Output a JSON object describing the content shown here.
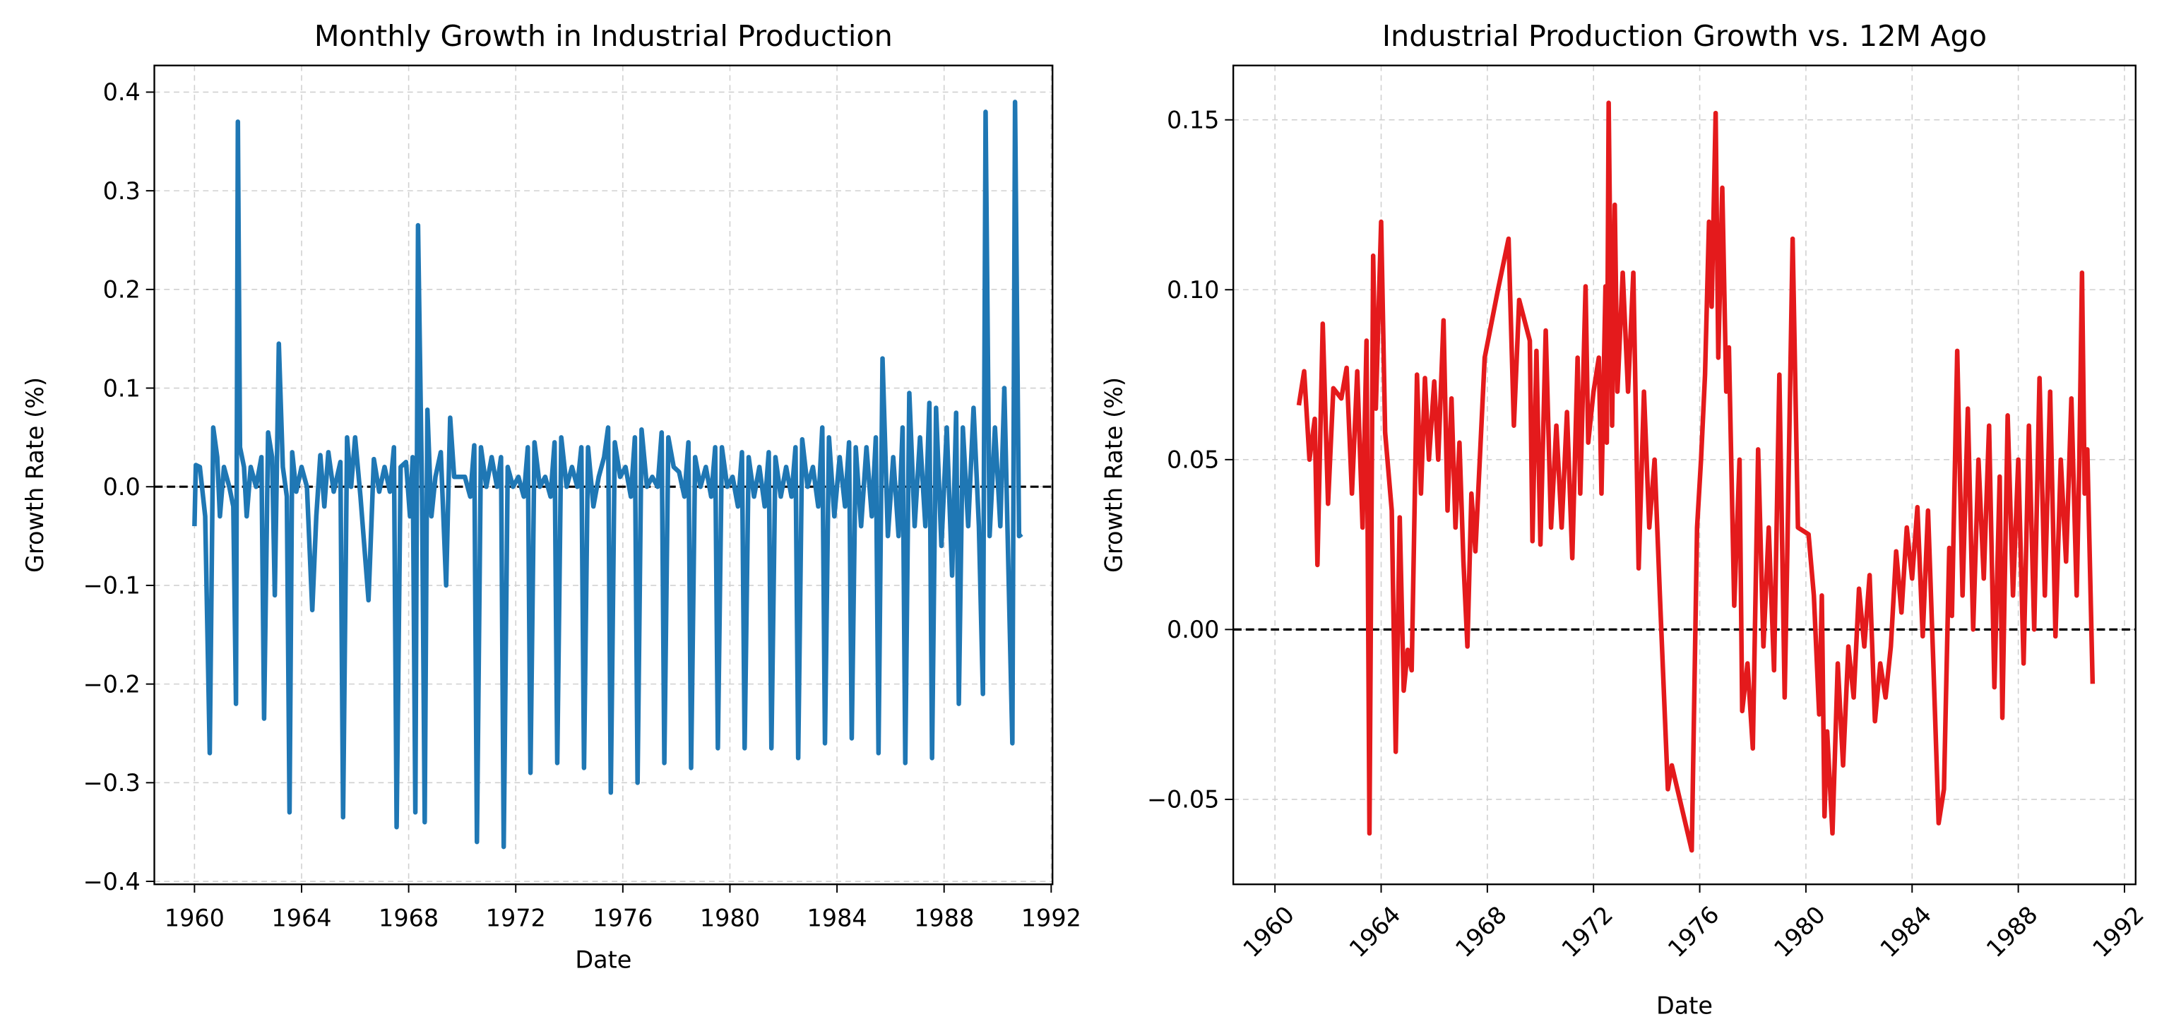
{
  "chart_data": [
    {
      "type": "line",
      "title": "Monthly Growth in Industrial Production",
      "xlabel": "Date",
      "ylabel": "Growth Rate (%)",
      "color": "#1f77b4",
      "grid": true,
      "hline": 0,
      "xlim": [
        1958.5,
        1992.05
      ],
      "xticks": [
        1960,
        1964,
        1968,
        1972,
        1976,
        1980,
        1984,
        1988,
        1992
      ],
      "ylim": [
        -0.403,
        0.427
      ],
      "yticks": [
        {
          "value": -0.4,
          "label": "−0.4"
        },
        {
          "value": -0.3,
          "label": "−0.3"
        },
        {
          "value": -0.2,
          "label": "−0.2"
        },
        {
          "value": -0.1,
          "label": "−0.1"
        },
        {
          "value": 0,
          "label": "0.0"
        },
        0.1,
        0.2,
        0.3,
        0.4
      ],
      "x": [
        1960.0,
        1960.05,
        1960.2,
        1960.4,
        1960.57,
        1960.7,
        1960.85,
        1960.95,
        1961.1,
        1961.3,
        1961.45,
        1961.55,
        1961.62,
        1961.7,
        1961.85,
        1961.95,
        1962.1,
        1962.3,
        1962.5,
        1962.6,
        1962.75,
        1962.9,
        1963.0,
        1963.15,
        1963.3,
        1963.45,
        1963.55,
        1963.65,
        1963.8,
        1964.0,
        1964.2,
        1964.4,
        1964.55,
        1964.7,
        1964.85,
        1965.0,
        1965.2,
        1965.45,
        1965.55,
        1965.7,
        1965.85,
        1966.0,
        1966.2,
        1966.5,
        1966.7,
        1966.9,
        1967.1,
        1967.3,
        1967.45,
        1967.55,
        1967.7,
        1967.9,
        1968.05,
        1968.15,
        1968.25,
        1968.35,
        1968.5,
        1968.6,
        1968.7,
        1968.85,
        1969.0,
        1969.2,
        1969.4,
        1969.55,
        1969.7,
        1969.9,
        1970.1,
        1970.3,
        1970.45,
        1970.55,
        1970.7,
        1970.9,
        1971.1,
        1971.3,
        1971.45,
        1971.55,
        1971.7,
        1971.9,
        1972.1,
        1972.3,
        1972.45,
        1972.55,
        1972.7,
        1972.9,
        1973.1,
        1973.3,
        1973.45,
        1973.55,
        1973.7,
        1973.9,
        1974.1,
        1974.3,
        1974.45,
        1974.55,
        1974.7,
        1974.9,
        1975.1,
        1975.3,
        1975.45,
        1975.55,
        1975.7,
        1975.9,
        1976.1,
        1976.3,
        1976.45,
        1976.55,
        1976.7,
        1976.9,
        1977.1,
        1977.3,
        1977.45,
        1977.55,
        1977.7,
        1977.9,
        1978.1,
        1978.3,
        1978.45,
        1978.55,
        1978.7,
        1978.9,
        1979.1,
        1979.3,
        1979.45,
        1979.55,
        1979.7,
        1979.9,
        1980.1,
        1980.3,
        1980.45,
        1980.55,
        1980.7,
        1980.9,
        1981.1,
        1981.3,
        1981.45,
        1981.55,
        1981.7,
        1981.9,
        1982.1,
        1982.3,
        1982.45,
        1982.55,
        1982.7,
        1982.9,
        1983.1,
        1983.3,
        1983.45,
        1983.55,
        1983.7,
        1983.9,
        1984.1,
        1984.3,
        1984.45,
        1984.55,
        1984.7,
        1984.9,
        1985.1,
        1985.3,
        1985.45,
        1985.55,
        1985.7,
        1985.9,
        1986.1,
        1986.3,
        1986.45,
        1986.55,
        1986.7,
        1986.9,
        1987.1,
        1987.3,
        1987.45,
        1987.55,
        1987.7,
        1987.9,
        1988.1,
        1988.3,
        1988.45,
        1988.55,
        1988.7,
        1988.9,
        1989.1,
        1989.3,
        1989.45,
        1989.55,
        1989.7,
        1989.9,
        1990.1,
        1990.25,
        1990.4,
        1990.55,
        1990.65,
        1990.8,
        1990.9
      ],
      "values": [
        -0.04,
        0.022,
        0.02,
        -0.03,
        -0.27,
        0.06,
        0.03,
        -0.03,
        0.02,
        0.0,
        -0.02,
        -0.22,
        0.37,
        0.04,
        0.02,
        -0.03,
        0.02,
        0.0,
        0.03,
        -0.235,
        0.055,
        0.03,
        -0.11,
        0.145,
        0.02,
        -0.01,
        -0.33,
        0.035,
        -0.005,
        0.02,
        0.0,
        -0.125,
        -0.03,
        0.032,
        -0.02,
        0.035,
        -0.005,
        0.025,
        -0.335,
        0.05,
        0.0,
        0.05,
        -0.01,
        -0.115,
        0.028,
        -0.005,
        0.02,
        -0.005,
        0.04,
        -0.345,
        0.02,
        0.025,
        -0.03,
        0.03,
        -0.33,
        0.265,
        -0.01,
        -0.34,
        0.078,
        -0.03,
        0.01,
        0.035,
        -0.1,
        0.07,
        0.01,
        0.01,
        0.01,
        -0.01,
        0.042,
        -0.36,
        0.04,
        0.0,
        0.03,
        0.0,
        0.03,
        -0.365,
        0.02,
        0.0,
        0.01,
        -0.01,
        0.04,
        -0.29,
        0.045,
        0.0,
        0.01,
        -0.01,
        0.045,
        -0.28,
        0.05,
        0.0,
        0.02,
        0.0,
        0.04,
        -0.285,
        0.04,
        -0.02,
        0.01,
        0.03,
        0.06,
        -0.31,
        0.045,
        0.01,
        0.02,
        -0.01,
        0.05,
        -0.3,
        0.058,
        0.0,
        0.01,
        0.0,
        0.055,
        -0.28,
        0.05,
        0.02,
        0.015,
        -0.01,
        0.045,
        -0.285,
        0.03,
        0.0,
        0.02,
        -0.01,
        0.04,
        -0.265,
        0.04,
        0.0,
        0.01,
        -0.02,
        0.035,
        -0.265,
        0.03,
        -0.01,
        0.02,
        -0.02,
        0.035,
        -0.265,
        0.03,
        -0.01,
        0.02,
        -0.01,
        0.04,
        -0.275,
        0.048,
        0.0,
        0.02,
        -0.02,
        0.06,
        -0.26,
        0.05,
        -0.03,
        0.03,
        -0.02,
        0.045,
        -0.255,
        0.04,
        -0.04,
        0.04,
        -0.03,
        0.05,
        -0.27,
        0.13,
        -0.05,
        0.03,
        -0.05,
        0.06,
        -0.28,
        0.095,
        -0.04,
        0.05,
        -0.04,
        0.085,
        -0.275,
        0.08,
        -0.06,
        0.06,
        -0.09,
        0.075,
        -0.22,
        0.06,
        -0.04,
        0.08,
        -0.04,
        -0.21,
        0.38,
        -0.05,
        0.06,
        -0.04,
        0.1,
        -0.08,
        -0.26,
        0.39,
        -0.05,
        -0.048
      ]
    },
    {
      "type": "line",
      "title": "Industrial Production Growth vs. 12M Ago",
      "xlabel": "Date",
      "ylabel": "Growth Rate (%)",
      "color": "#e41a1c",
      "grid": true,
      "hline": 0,
      "xtick_rotation": 45,
      "xlim": [
        1958.43,
        1992.42
      ],
      "xticks": [
        1960,
        1964,
        1968,
        1972,
        1976,
        1980,
        1984,
        1988,
        1992
      ],
      "ylim": [
        -0.075,
        0.166
      ],
      "yticks": [
        {
          "value": -0.05,
          "label": "−0.05"
        },
        {
          "value": 0,
          "label": "0.00"
        },
        0.05,
        {
          "value": 0.1,
          "label": "0.10"
        },
        0.15
      ],
      "x": [
        1960.9,
        1961.1,
        1961.3,
        1961.5,
        1961.6,
        1961.8,
        1962.0,
        1962.2,
        1962.5,
        1962.7,
        1962.9,
        1963.1,
        1963.3,
        1963.45,
        1963.56,
        1963.7,
        1963.8,
        1964.0,
        1964.15,
        1964.4,
        1964.55,
        1964.7,
        1964.85,
        1965.0,
        1965.15,
        1965.35,
        1965.5,
        1965.65,
        1965.8,
        1966.0,
        1966.15,
        1966.35,
        1966.5,
        1966.65,
        1966.8,
        1966.95,
        1967.1,
        1967.25,
        1967.4,
        1967.55,
        1967.9,
        1968.4,
        1968.8,
        1969.0,
        1969.2,
        1969.6,
        1969.7,
        1969.85,
        1970.0,
        1970.2,
        1970.4,
        1970.6,
        1970.8,
        1971.0,
        1971.2,
        1971.4,
        1971.5,
        1971.7,
        1971.8,
        1972.0,
        1972.2,
        1972.3,
        1972.45,
        1972.5,
        1972.57,
        1972.7,
        1972.8,
        1972.9,
        1973.1,
        1973.3,
        1973.5,
        1973.7,
        1973.9,
        1974.1,
        1974.3,
        1974.5,
        1974.8,
        1974.95,
        1975.7,
        1975.9,
        1976.05,
        1976.2,
        1976.35,
        1976.45,
        1976.6,
        1976.7,
        1976.85,
        1977.0,
        1977.1,
        1977.3,
        1977.5,
        1977.6,
        1977.8,
        1978.0,
        1978.2,
        1978.4,
        1978.6,
        1978.8,
        1979.0,
        1979.2,
        1979.3,
        1979.5,
        1979.7,
        1980.1,
        1980.3,
        1980.5,
        1980.6,
        1980.7,
        1980.8,
        1981.0,
        1981.2,
        1981.4,
        1981.6,
        1981.8,
        1982.0,
        1982.2,
        1982.4,
        1982.6,
        1982.8,
        1983.0,
        1983.2,
        1983.4,
        1983.6,
        1983.8,
        1984.0,
        1984.2,
        1984.4,
        1984.6,
        1984.8,
        1985.0,
        1985.2,
        1985.4,
        1985.5,
        1985.7,
        1985.9,
        1986.1,
        1986.3,
        1986.5,
        1986.7,
        1986.9,
        1987.1,
        1987.3,
        1987.4,
        1987.6,
        1987.8,
        1988.0,
        1988.2,
        1988.4,
        1988.6,
        1988.8,
        1989.0,
        1989.2,
        1989.4,
        1989.6,
        1989.8,
        1990.0,
        1990.2,
        1990.3,
        1990.4,
        1990.5,
        1990.6,
        1990.8
      ],
      "values": [
        0.066,
        0.076,
        0.05,
        0.062,
        0.019,
        0.09,
        0.037,
        0.071,
        0.068,
        0.077,
        0.04,
        0.076,
        0.03,
        0.085,
        -0.06,
        0.11,
        0.065,
        0.12,
        0.058,
        0.035,
        -0.036,
        0.033,
        -0.018,
        -0.006,
        -0.012,
        0.075,
        0.04,
        0.074,
        0.05,
        0.073,
        0.05,
        0.091,
        0.035,
        0.068,
        0.03,
        0.055,
        0.02,
        -0.005,
        0.04,
        0.023,
        0.08,
        0.1,
        0.115,
        0.06,
        0.097,
        0.085,
        0.026,
        0.082,
        0.025,
        0.088,
        0.03,
        0.06,
        0.03,
        0.064,
        0.021,
        0.08,
        0.04,
        0.101,
        0.055,
        0.07,
        0.08,
        0.04,
        0.101,
        0.055,
        0.155,
        0.06,
        0.125,
        0.07,
        0.105,
        0.07,
        0.105,
        0.018,
        0.07,
        0.03,
        0.05,
        0.01,
        -0.047,
        -0.04,
        -0.065,
        0.03,
        0.05,
        0.075,
        0.12,
        0.095,
        0.152,
        0.08,
        0.13,
        0.07,
        0.083,
        0.007,
        0.05,
        -0.024,
        -0.01,
        -0.035,
        0.053,
        -0.005,
        0.03,
        -0.012,
        0.075,
        -0.02,
        0.023,
        0.115,
        0.03,
        0.028,
        0.01,
        -0.025,
        0.01,
        -0.055,
        -0.03,
        -0.06,
        -0.01,
        -0.04,
        -0.005,
        -0.02,
        0.012,
        -0.005,
        0.016,
        -0.027,
        -0.01,
        -0.02,
        -0.005,
        0.023,
        0.005,
        0.03,
        0.015,
        0.036,
        -0.002,
        0.035,
        -0.01,
        -0.057,
        -0.047,
        0.024,
        0.004,
        0.082,
        0.01,
        0.065,
        0.0,
        0.05,
        0.015,
        0.06,
        -0.017,
        0.045,
        -0.026,
        0.063,
        0.01,
        0.05,
        -0.01,
        0.06,
        0.0,
        0.074,
        0.01,
        0.07,
        -0.002,
        0.05,
        0.02,
        0.068,
        0.01,
        0.05,
        0.105,
        0.04,
        0.053,
        -0.016
      ]
    }
  ]
}
